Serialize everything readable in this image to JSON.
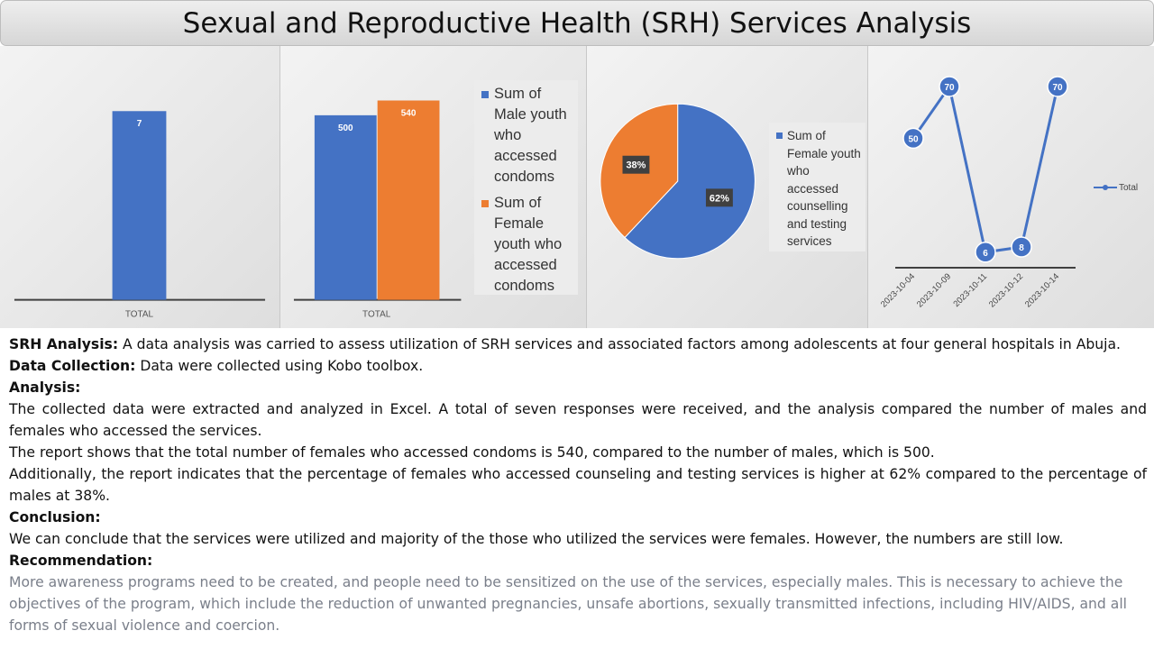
{
  "title": "Sexual and Reproductive Health (SRH) Services Analysis",
  "chart_data": [
    {
      "type": "bar",
      "categories": [
        "TOTAL"
      ],
      "series": [
        {
          "values": [
            7
          ],
          "color": "#4472c4"
        }
      ],
      "data_labels": [
        "7"
      ],
      "xlabel": "",
      "ylabel": "",
      "ylim": [
        0,
        7.8
      ],
      "grid": false
    },
    {
      "type": "bar",
      "categories": [
        "TOTAL"
      ],
      "series": [
        {
          "name": "Sum of Male youth who accessed condoms",
          "values": [
            500
          ],
          "color": "#4472c4"
        },
        {
          "name": "Sum of Female youth who accessed condoms",
          "values": [
            540
          ],
          "color": "#ed7d31"
        }
      ],
      "data_labels": [
        "500",
        "540"
      ],
      "ylim": [
        0,
        600
      ],
      "legend": "right",
      "grid": false
    },
    {
      "type": "pie",
      "slices": [
        {
          "label": "62%",
          "value": 62,
          "color": "#4472c4"
        },
        {
          "label": "38%",
          "value": 38,
          "color": "#ed7d31"
        }
      ],
      "legend_entries": [
        "Sum of Female youth who accessed counselling and testing services"
      ],
      "legend": "right"
    },
    {
      "type": "line",
      "x": [
        "2023-10-04",
        "2023-10-09",
        "2023-10-11",
        "2023-10-12",
        "2023-10-14"
      ],
      "series": [
        {
          "name": "Total",
          "values": [
            50,
            70,
            6,
            8,
            70
          ],
          "color": "#4472c4"
        }
      ],
      "data_labels": [
        "50",
        "70",
        "6",
        "8",
        "70"
      ],
      "ylim": [
        0,
        75
      ],
      "legend": "right",
      "grid": false
    }
  ],
  "text": {
    "srh_label": "SRH Analysis:",
    "srh_text": " A data analysis was carried to assess utilization of SRH services and associated factors among adolescents at four general hospitals in Abuja.",
    "collection_label": "Data Collection:",
    "collection_text": " Data were collected using Kobo toolbox.",
    "analysis_label": "Analysis:",
    "analysis_p1": "The collected data were extracted and analyzed in Excel. A total of seven responses were received, and the analysis compared the number of males and females who accessed the services.",
    "analysis_p2": "The report shows that the total number of females who accessed condoms is 540, compared to the number of males, which is 500.",
    "analysis_p3": "Additionally, the report indicates that the percentage of females who accessed counseling and testing services is higher at 62% compared to the percentage of males at 38%.",
    "conclusion_label": "Conclusion:",
    "conclusion_text": "We can conclude that the services were utilized and majority of the those who utilized the services were females. However, the numbers are still low.",
    "recommendation_label": "Recommendation:",
    "recommendation_text": "More awareness programs need to be created, and people need to be sensitized on the use of the services, especially males. This is necessary to achieve the objectives of the program, which include the reduction of unwanted pregnancies, unsafe abortions, sexually transmitted infections, including HIV/AIDS, and all forms of sexual violence and coercion."
  }
}
